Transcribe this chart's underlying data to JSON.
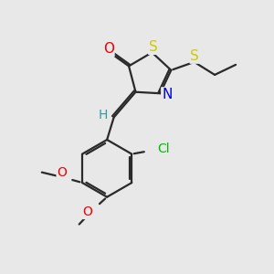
{
  "bg_color": "#e8e8e8",
  "bond_color": "#2a2a2a",
  "bond_lw": 1.6,
  "atom_colors": {
    "O": "#ee0000",
    "S": "#cccc00",
    "N": "#0000dd",
    "Cl": "#00bb00",
    "H": "#339999",
    "C": "#2a2a2a"
  },
  "figsize": [
    3.0,
    3.0
  ],
  "dpi": 100,
  "xlim": [
    0,
    10
  ],
  "ylim": [
    0,
    10
  ]
}
